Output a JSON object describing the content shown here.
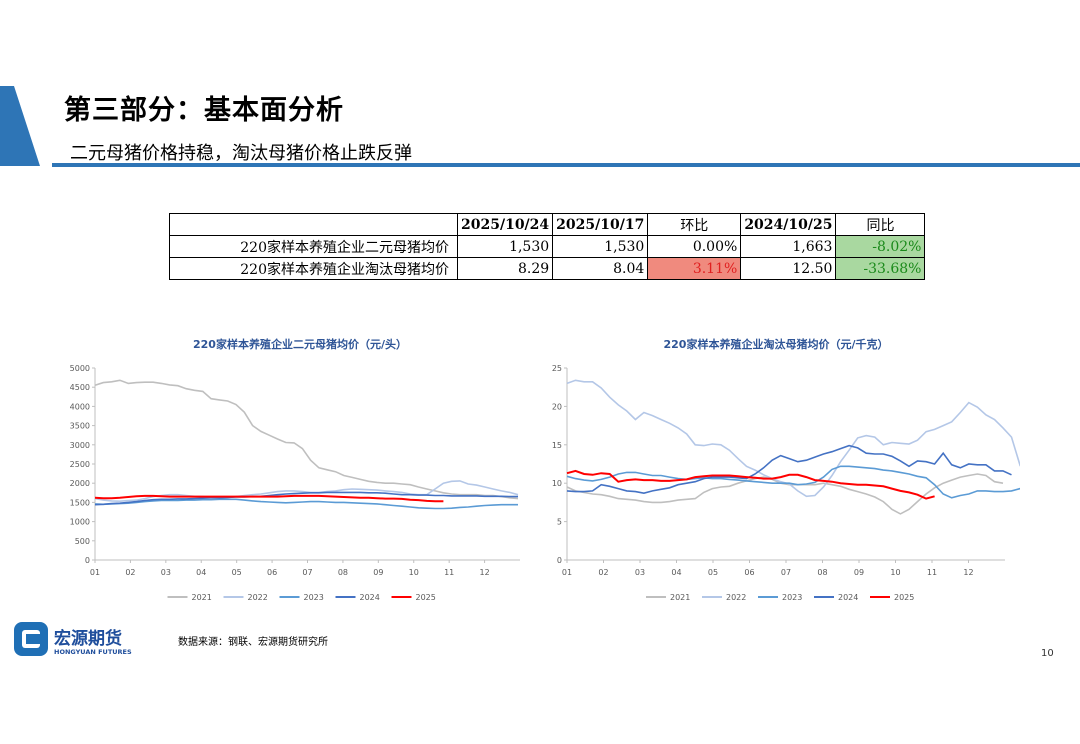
{
  "header": {
    "title": "第三部分：基本面分析",
    "subtitle": "二元母猪价格持稳，淘汰母猪价格止跌反弹"
  },
  "table": {
    "headers": [
      "",
      "2025/10/24",
      "2025/10/17",
      "环比",
      "2024/10/25",
      "同比"
    ],
    "rows": [
      [
        "220家样本养殖企业二元母猪均价",
        "1,530",
        "1,530",
        "0.00%",
        "1,663",
        "-8.02%"
      ],
      [
        "220家样本养殖企业淘汰母猪均价",
        "8.29",
        "8.04",
        "3.11%",
        "12.50",
        "-33.68%"
      ]
    ],
    "colors": {
      "up": "#f08a7e",
      "down": "#a9d8a0"
    }
  },
  "chart_data": [
    {
      "type": "line",
      "title": "220家样本养殖企业二元母猪均价（元/头）",
      "x_ticks": [
        "01",
        "02",
        "03",
        "04",
        "05",
        "06",
        "07",
        "08",
        "09",
        "10",
        "11",
        "12"
      ],
      "y_ticks": [
        0,
        500,
        1000,
        1500,
        2000,
        2500,
        3000,
        3500,
        4000,
        4500,
        5000
      ],
      "ylim": [
        0,
        5000
      ],
      "legend_position": "bottom",
      "series": [
        {
          "name": "2021",
          "color": "#bfbfbf",
          "values": [
            4550,
            4620,
            4640,
            4680,
            4600,
            4620,
            4630,
            4630,
            4600,
            4560,
            4540,
            4460,
            4420,
            4390,
            4200,
            4170,
            4140,
            4050,
            3850,
            3500,
            3350,
            3250,
            3150,
            3060,
            3050,
            2900,
            2600,
            2400,
            2350,
            2300,
            2200,
            2150,
            2100,
            2050,
            2020,
            2000,
            2000,
            1980,
            1960,
            1900,
            1850,
            1800,
            1750,
            1720,
            1700,
            1700,
            1700,
            1680,
            1680,
            1650,
            1620,
            1600
          ]
        },
        {
          "name": "2022",
          "color": "#b4c7e7",
          "values": [
            1600,
            1560,
            1540,
            1530,
            1550,
            1560,
            1600,
            1650,
            1680,
            1700,
            1700,
            1680,
            1660,
            1650,
            1620,
            1620,
            1630,
            1650,
            1680,
            1700,
            1720,
            1750,
            1780,
            1800,
            1800,
            1780,
            1760,
            1760,
            1780,
            1800,
            1830,
            1850,
            1840,
            1830,
            1820,
            1800,
            1780,
            1760,
            1720,
            1700,
            1700,
            1850,
            2000,
            2050,
            2060,
            1980,
            1950,
            1900,
            1850,
            1800,
            1760,
            1700
          ]
        },
        {
          "name": "2023",
          "color": "#5b9bd5",
          "values": [
            1460,
            1450,
            1460,
            1470,
            1480,
            1500,
            1520,
            1540,
            1550,
            1550,
            1550,
            1560,
            1560,
            1570,
            1570,
            1580,
            1580,
            1580,
            1560,
            1540,
            1520,
            1510,
            1500,
            1490,
            1500,
            1510,
            1520,
            1520,
            1510,
            1500,
            1500,
            1490,
            1480,
            1470,
            1460,
            1440,
            1420,
            1400,
            1380,
            1360,
            1350,
            1340,
            1340,
            1350,
            1370,
            1380,
            1400,
            1420,
            1430,
            1440,
            1440,
            1440
          ]
        },
        {
          "name": "2024",
          "color": "#4472c4",
          "values": [
            1440,
            1450,
            1470,
            1480,
            1500,
            1520,
            1550,
            1570,
            1580,
            1580,
            1590,
            1590,
            1600,
            1610,
            1620,
            1620,
            1630,
            1640,
            1640,
            1650,
            1660,
            1680,
            1700,
            1720,
            1730,
            1740,
            1750,
            1750,
            1760,
            1760,
            1760,
            1760,
            1760,
            1750,
            1750,
            1740,
            1720,
            1700,
            1700,
            1690,
            1690,
            1680,
            1680,
            1670,
            1670,
            1670,
            1670,
            1660,
            1660,
            1660,
            1650,
            1650
          ]
        },
        {
          "name": "2025",
          "color": "#ff0000",
          "values": [
            1620,
            1610,
            1610,
            1620,
            1640,
            1660,
            1670,
            1670,
            1660,
            1650,
            1650,
            1650,
            1650,
            1650,
            1650,
            1650,
            1650,
            1650,
            1650,
            1650,
            1650,
            1650,
            1650,
            1660,
            1670,
            1670,
            1670,
            1670,
            1660,
            1650,
            1640,
            1630,
            1620,
            1620,
            1610,
            1600,
            1600,
            1590,
            1570,
            1560,
            1540,
            1530,
            1530
          ]
        }
      ]
    },
    {
      "type": "line",
      "title": "220家样本养殖企业淘汰母猪均价（元/千克）",
      "x_ticks": [
        "01",
        "02",
        "03",
        "04",
        "05",
        "06",
        "07",
        "08",
        "09",
        "10",
        "11",
        "12"
      ],
      "y_ticks": [
        0,
        5,
        10,
        15,
        20,
        25
      ],
      "ylim": [
        0,
        25
      ],
      "legend_position": "bottom",
      "series": [
        {
          "name": "2021",
          "color": "#bfbfbf",
          "values": [
            9.5,
            9.0,
            8.8,
            8.6,
            8.5,
            8.3,
            8.0,
            7.9,
            7.8,
            7.6,
            7.5,
            7.5,
            7.6,
            7.8,
            7.9,
            8.0,
            8.8,
            9.3,
            9.5,
            9.6,
            10.0,
            10.3,
            10.6,
            10.8,
            10.5,
            10.0,
            9.8,
            9.8,
            9.8,
            9.8,
            10.0,
            9.8,
            9.6,
            9.2,
            8.9,
            8.6,
            8.2,
            7.6,
            6.6,
            6.0,
            6.6,
            7.6,
            8.6,
            9.4,
            10.0,
            10.4,
            10.8,
            11.0,
            11.2,
            11.0,
            10.2,
            10.0
          ]
        },
        {
          "name": "2022",
          "color": "#b4c7e7",
          "values": [
            23.0,
            23.4,
            23.2,
            23.2,
            22.4,
            21.2,
            20.2,
            19.4,
            18.3,
            19.2,
            18.8,
            18.3,
            17.8,
            17.2,
            16.4,
            15.0,
            14.9,
            15.1,
            15.0,
            14.3,
            13.2,
            12.2,
            11.7,
            11.1,
            10.6,
            10.2,
            9.9,
            9.0,
            8.3,
            8.4,
            9.5,
            11.0,
            12.8,
            14.3,
            15.9,
            16.2,
            16.0,
            15.0,
            15.3,
            15.2,
            15.1,
            15.6,
            16.7,
            17.0,
            17.5,
            18.0,
            19.2,
            20.5,
            19.9,
            18.9,
            18.3,
            17.2,
            16.0,
            12.3,
            12.4
          ]
        },
        {
          "name": "2023",
          "color": "#5b9bd5",
          "values": [
            10.9,
            10.6,
            10.4,
            10.3,
            10.5,
            10.8,
            11.2,
            11.4,
            11.4,
            11.2,
            11.0,
            11.0,
            10.8,
            10.6,
            10.5,
            10.6,
            10.7,
            10.6,
            10.6,
            10.5,
            10.4,
            10.3,
            10.2,
            10.1,
            10.0,
            10.0,
            10.0,
            9.8,
            9.9,
            10.1,
            10.8,
            11.8,
            12.2,
            12.2,
            12.1,
            12.0,
            11.9,
            11.7,
            11.6,
            11.4,
            11.2,
            10.9,
            10.7,
            9.8,
            8.6,
            8.1,
            8.4,
            8.6,
            9.0,
            9.0,
            8.9,
            8.9,
            9.0,
            9.3,
            9.2
          ]
        },
        {
          "name": "2024",
          "color": "#4472c4",
          "values": [
            9.0,
            8.9,
            8.9,
            9.0,
            9.8,
            9.6,
            9.3,
            9.0,
            8.9,
            8.7,
            9.0,
            9.2,
            9.4,
            9.8,
            10.0,
            10.2,
            10.6,
            10.8,
            10.8,
            10.8,
            10.7,
            10.6,
            11.2,
            12.0,
            13.0,
            13.6,
            13.2,
            12.8,
            13.0,
            13.4,
            13.8,
            14.1,
            14.5,
            14.9,
            14.6,
            13.9,
            13.8,
            13.8,
            13.5,
            12.9,
            12.2,
            12.9,
            12.8,
            12.5,
            13.9,
            12.4,
            12.0,
            12.5,
            12.4,
            12.4,
            11.6,
            11.6,
            11.1
          ]
        },
        {
          "name": "2025",
          "color": "#ff0000",
          "values": [
            11.3,
            11.6,
            11.2,
            11.1,
            11.3,
            11.2,
            10.2,
            10.4,
            10.5,
            10.4,
            10.4,
            10.3,
            10.3,
            10.4,
            10.5,
            10.8,
            10.9,
            11.0,
            11.0,
            11.0,
            10.9,
            10.8,
            10.7,
            10.6,
            10.6,
            10.8,
            11.1,
            11.1,
            10.8,
            10.4,
            10.3,
            10.2,
            10.0,
            9.9,
            9.8,
            9.8,
            9.7,
            9.6,
            9.3,
            9.0,
            8.8,
            8.5,
            8.0,
            8.3
          ]
        }
      ]
    }
  ],
  "footer": {
    "source": "数据来源：钢联、宏源期货研究所",
    "page": "10",
    "logo_cn": "宏源期货",
    "logo_en": "HONGYUAN FUTURES"
  }
}
